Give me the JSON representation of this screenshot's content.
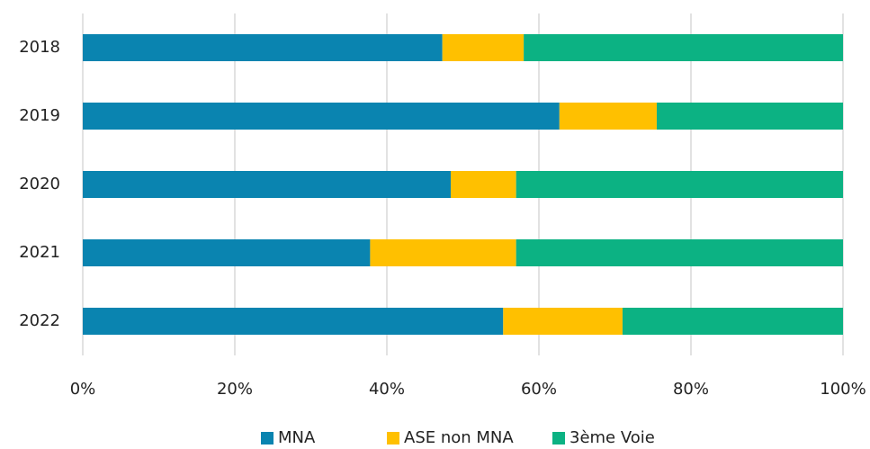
{
  "chart_data": {
    "type": "bar",
    "orientation": "horizontal",
    "stacked": true,
    "categories": [
      "2018",
      "2019",
      "2020",
      "2021",
      "2022"
    ],
    "series": [
      {
        "name": "MNA",
        "color": "#0a84b0",
        "values": [
          47.3,
          62.7,
          48.4,
          37.8,
          55.3
        ]
      },
      {
        "name": "ASE non MNA",
        "color": "#ffc000",
        "values": [
          10.7,
          12.8,
          8.6,
          19.2,
          15.7
        ]
      },
      {
        "name": "3ème Voie",
        "color": "#0cb283",
        "values": [
          42.0,
          24.5,
          43.0,
          43.0,
          29.0
        ]
      }
    ],
    "xlim": [
      0,
      100
    ],
    "xticks": [
      {
        "value": 0,
        "label": "0%"
      },
      {
        "value": 20,
        "label": "20%"
      },
      {
        "value": 40,
        "label": "40%"
      },
      {
        "value": 60,
        "label": "60%"
      },
      {
        "value": 80,
        "label": "80%"
      },
      {
        "value": 100,
        "label": "100%"
      }
    ],
    "grid": true,
    "legend": "bottom"
  }
}
